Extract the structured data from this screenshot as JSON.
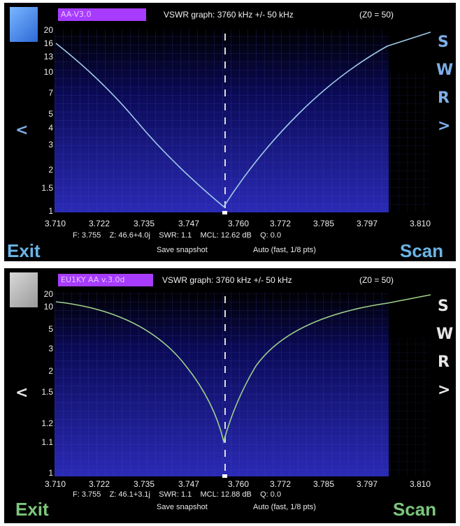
{
  "panels": [
    {
      "version_label": "AA-V3.0",
      "header": "VSWR graph: 3760 kHz +/- 50 kHz",
      "z0": "(Z0 = 50)",
      "y_ticks": [
        "20",
        "16",
        "13",
        "10",
        "7",
        "5",
        "4",
        "3",
        "2",
        "1.5",
        "1"
      ],
      "x_ticks": [
        "3.710",
        "3.722",
        "3.735",
        "3.747",
        "3.760",
        "3.772",
        "3.785",
        "3.797",
        "3.810"
      ],
      "swr_letters": [
        "S",
        "W",
        "R"
      ],
      "left_arrow": "<",
      "right_arrow": ">",
      "readout": "F: 3.755    Z: 46.6+4.0j    SWR: 1.1    MCL: 12.62 dB    Q: 0.0",
      "exit": "Exit",
      "scan": "Scan",
      "save": "Save snapshot",
      "auto": "Auto (fast, 1/8 pts)",
      "colors": {
        "curve": "#9fcbe8",
        "buttons": "#6bb5e8",
        "grid_bg": "#1f1f9e"
      }
    },
    {
      "version_label": "EU1KY AA v.3.0d",
      "header": "VSWR graph: 3760 kHz +/- 50 kHz",
      "z0": "(Z0 = 50)",
      "y_ticks": [
        "20",
        "10",
        "5",
        "3",
        "2",
        "1.5",
        "1.2",
        "1.1",
        "1"
      ],
      "x_ticks": [
        "3.710",
        "3.722",
        "3.735",
        "3.747",
        "3.760",
        "3.772",
        "3.785",
        "3.797",
        "3.810"
      ],
      "swr_letters": [
        "S",
        "W",
        "R"
      ],
      "left_arrow": "<",
      "right_arrow": ">",
      "readout": "F: 3.755    Z: 46.1+3.1j    SWR: 1.1    MCL: 12.88 dB    Q: 0.0",
      "exit": "Exit",
      "scan": "Scan",
      "save": "Save snapshot",
      "auto": "Auto (fast, 1/8 pts)",
      "colors": {
        "curve": "#9fd28a",
        "buttons": "#7cc77b",
        "grid_bg": "#1f1f9e"
      }
    }
  ]
}
